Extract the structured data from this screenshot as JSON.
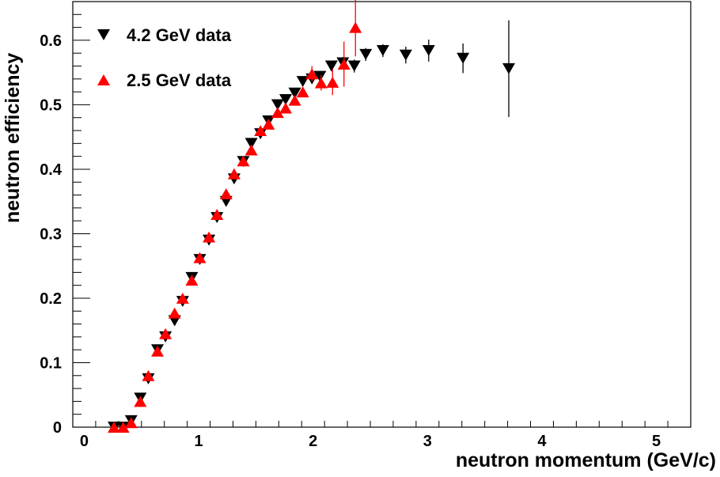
{
  "chart_data": {
    "type": "scatter",
    "title": "",
    "xlabel": "neutron momentum (GeV/c)",
    "ylabel": "neutron efficiency",
    "xlim": [
      -0.1,
      5.3
    ],
    "ylim": [
      0,
      0.66
    ],
    "xticks": [
      0,
      1,
      2,
      3,
      4,
      5
    ],
    "xtick_labels": [
      "0",
      "1",
      "2",
      "3",
      "4",
      "5"
    ],
    "yticks": [
      0,
      0.1,
      0.2,
      0.3,
      0.4,
      0.5,
      0.6
    ],
    "ytick_labels": [
      "0",
      "0.1",
      "0.2",
      "0.3",
      "0.4",
      "0.5",
      "0.6"
    ],
    "grid": false,
    "legend_position": "top-left",
    "series": [
      {
        "name": "4.2 GeV data",
        "marker": "triangle-down",
        "color": "#000000",
        "x": [
          0.26,
          0.34,
          0.41,
          0.49,
          0.56,
          0.64,
          0.71,
          0.79,
          0.86,
          0.94,
          1.01,
          1.09,
          1.16,
          1.24,
          1.31,
          1.39,
          1.46,
          1.54,
          1.61,
          1.69,
          1.76,
          1.84,
          1.91,
          1.99,
          2.06,
          2.16,
          2.26,
          2.36,
          2.46,
          2.61,
          2.81,
          3.01,
          3.31,
          3.71
        ],
        "y": [
          0.0,
          0.0,
          0.01,
          0.045,
          0.075,
          0.12,
          0.14,
          0.165,
          0.195,
          0.232,
          0.26,
          0.29,
          0.325,
          0.35,
          0.385,
          0.412,
          0.44,
          0.455,
          0.475,
          0.5,
          0.508,
          0.518,
          0.536,
          0.54,
          0.544,
          0.56,
          0.565,
          0.56,
          0.578,
          0.584,
          0.577,
          0.584,
          0.572,
          0.556
        ],
        "yerr": [
          0.002,
          0.002,
          0.003,
          0.004,
          0.004,
          0.004,
          0.004,
          0.004,
          0.004,
          0.004,
          0.004,
          0.004,
          0.004,
          0.004,
          0.004,
          0.004,
          0.004,
          0.004,
          0.004,
          0.004,
          0.004,
          0.005,
          0.005,
          0.006,
          0.007,
          0.008,
          0.009,
          0.01,
          0.01,
          0.01,
          0.013,
          0.017,
          0.023,
          0.075
        ]
      },
      {
        "name": "2.5 GeV data",
        "marker": "triangle-up",
        "color": "#ff0000",
        "x": [
          0.26,
          0.34,
          0.41,
          0.49,
          0.56,
          0.64,
          0.71,
          0.79,
          0.86,
          0.94,
          1.01,
          1.09,
          1.16,
          1.24,
          1.31,
          1.39,
          1.46,
          1.54,
          1.61,
          1.69,
          1.76,
          1.84,
          1.91,
          1.99,
          2.07,
          2.17,
          2.27,
          2.37
        ],
        "y": [
          0.0,
          0.0,
          0.007,
          0.04,
          0.08,
          0.118,
          0.145,
          0.177,
          0.2,
          0.228,
          0.263,
          0.295,
          0.33,
          0.362,
          0.393,
          0.413,
          0.43,
          0.46,
          0.47,
          0.488,
          0.495,
          0.507,
          0.52,
          0.548,
          0.534,
          0.535,
          0.563,
          0.62
        ],
        "yerr": [
          0.002,
          0.002,
          0.003,
          0.004,
          0.004,
          0.004,
          0.004,
          0.004,
          0.004,
          0.004,
          0.004,
          0.004,
          0.004,
          0.004,
          0.004,
          0.004,
          0.004,
          0.004,
          0.004,
          0.005,
          0.005,
          0.006,
          0.007,
          0.012,
          0.012,
          0.02,
          0.035,
          0.045
        ]
      }
    ]
  }
}
